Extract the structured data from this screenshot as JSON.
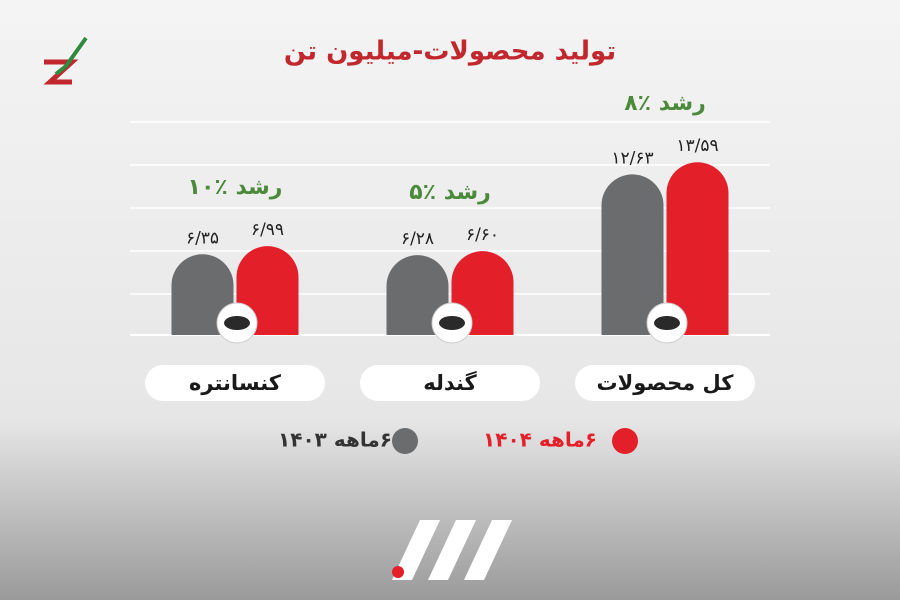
{
  "chart_data": {
    "type": "bar",
    "title": "تولید محصولات-میلیون تن",
    "categories": [
      "کنسانتره",
      "گندله",
      "کل محصولات"
    ],
    "series": [
      {
        "name": "۶ماهه ۱۴۰۳",
        "color": "#6b6c6e",
        "values": [
          6.35,
          6.28,
          12.63
        ],
        "value_labels": [
          "۶/۳۵",
          "۶/۲۸",
          "۱۲/۶۳"
        ]
      },
      {
        "name": "۶ماهه ۱۴۰۴",
        "color": "#e3202a",
        "values": [
          6.99,
          6.6,
          13.59
        ],
        "value_labels": [
          "۶/۹۹",
          "۶/۶۰",
          "۱۳/۵۹"
        ]
      }
    ],
    "annotations": [
      "رشد ٪۱۰",
      "رشد ٪۵",
      "رشد ٪۸"
    ],
    "ylim": [
      0,
      14
    ]
  }
}
